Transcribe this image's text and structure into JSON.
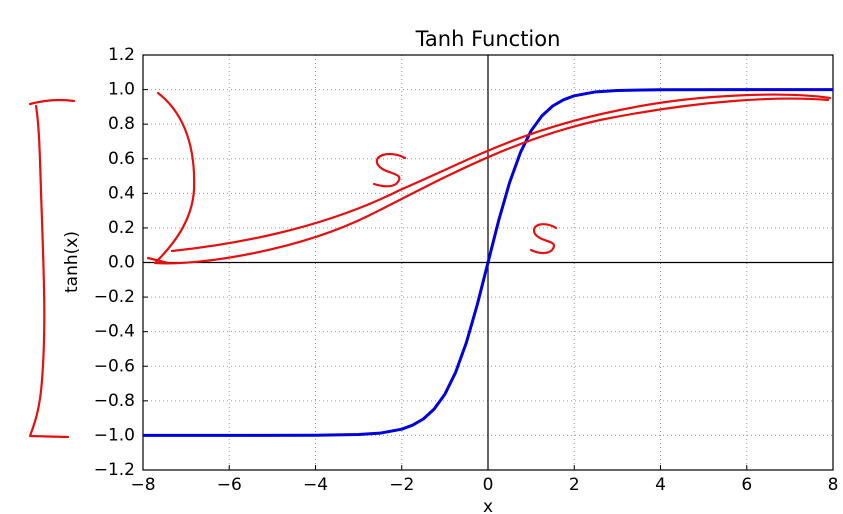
{
  "chart_data": {
    "type": "line",
    "title": "Tanh Function",
    "xlabel": "x",
    "ylabel": "tanh(x)",
    "x": [
      -8,
      -6,
      -4,
      -3,
      -2.5,
      -2,
      -1.75,
      -1.5,
      -1.25,
      -1,
      -0.75,
      -0.5,
      -0.25,
      0,
      0.25,
      0.5,
      0.75,
      1,
      1.25,
      1.5,
      1.75,
      2,
      2.5,
      3,
      4,
      6,
      8
    ],
    "series": [
      {
        "color": "#0000dd",
        "values": [
          -1.0,
          -1.0,
          -0.999,
          -0.995,
          -0.987,
          -0.964,
          -0.941,
          -0.905,
          -0.848,
          -0.762,
          -0.635,
          -0.462,
          -0.245,
          0,
          0.245,
          0.462,
          0.635,
          0.762,
          0.848,
          0.905,
          0.941,
          0.964,
          0.987,
          0.995,
          0.999,
          1.0,
          1.0
        ]
      }
    ],
    "xlim": [
      -8,
      8
    ],
    "xticks": [
      {
        "value": -8,
        "label": "−8"
      },
      {
        "value": -6,
        "label": "−6"
      },
      {
        "value": -4,
        "label": "−4"
      },
      {
        "value": -2,
        "label": "−2"
      },
      0,
      2,
      4,
      6,
      8
    ],
    "ylim": [
      -1.2,
      1.2
    ],
    "yticks": [
      {
        "value": -1.2,
        "label": "−1.2"
      },
      {
        "value": -1.0,
        "label": "−1.0"
      },
      {
        "value": -0.8,
        "label": "−0.8"
      },
      {
        "value": -0.6,
        "label": "−0.6"
      },
      {
        "value": -0.4,
        "label": "−0.4"
      },
      {
        "value": -0.2,
        "label": "−0.2"
      },
      {
        "value": 0,
        "label": "0.0"
      },
      {
        "value": 0.2,
        "label": "0.2"
      },
      {
        "value": 0.4,
        "label": "0.4"
      },
      {
        "value": 0.6,
        "label": "0.6"
      },
      {
        "value": 0.8,
        "label": "0.8"
      },
      {
        "value": 1.0,
        "label": "1.0"
      },
      {
        "value": 1.2,
        "label": "1.2"
      }
    ],
    "grid": true
  }
}
